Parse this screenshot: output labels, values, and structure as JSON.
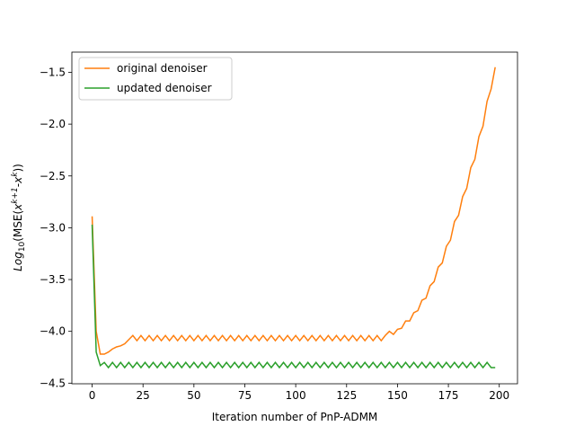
{
  "chart_data": {
    "type": "line",
    "xlabel": "Iteration number of PnP-ADMM",
    "ylabel_parts": [
      "Log",
      "10",
      "(MSE(",
      "x",
      "k+1",
      "-",
      "x",
      "k",
      "))"
    ],
    "x": [
      0,
      2,
      4,
      6,
      8,
      10,
      12,
      14,
      16,
      18,
      20,
      22,
      24,
      26,
      28,
      30,
      32,
      34,
      36,
      38,
      40,
      42,
      44,
      46,
      48,
      50,
      52,
      54,
      56,
      58,
      60,
      62,
      64,
      66,
      68,
      70,
      72,
      74,
      76,
      78,
      80,
      82,
      84,
      86,
      88,
      90,
      92,
      94,
      96,
      98,
      100,
      102,
      104,
      106,
      108,
      110,
      112,
      114,
      116,
      118,
      120,
      122,
      124,
      126,
      128,
      130,
      132,
      134,
      136,
      138,
      140,
      142,
      144,
      146,
      148,
      150,
      152,
      154,
      156,
      158,
      160,
      162,
      164,
      166,
      168,
      170,
      172,
      174,
      176,
      178,
      180,
      182,
      184,
      186,
      188,
      190,
      192,
      194,
      196,
      198
    ],
    "series": [
      {
        "name": "original denoiser",
        "color": "#ff7f0e",
        "values": [
          -2.89,
          -4.0,
          -4.22,
          -4.22,
          -4.2,
          -4.17,
          -4.15,
          -4.14,
          -4.12,
          -4.08,
          -4.04,
          -4.09,
          -4.04,
          -4.09,
          -4.04,
          -4.09,
          -4.04,
          -4.09,
          -4.04,
          -4.09,
          -4.04,
          -4.09,
          -4.04,
          -4.09,
          -4.04,
          -4.09,
          -4.04,
          -4.09,
          -4.04,
          -4.09,
          -4.04,
          -4.09,
          -4.04,
          -4.09,
          -4.04,
          -4.09,
          -4.04,
          -4.09,
          -4.04,
          -4.09,
          -4.04,
          -4.09,
          -4.04,
          -4.09,
          -4.04,
          -4.09,
          -4.04,
          -4.09,
          -4.04,
          -4.09,
          -4.04,
          -4.09,
          -4.04,
          -4.09,
          -4.04,
          -4.09,
          -4.04,
          -4.09,
          -4.04,
          -4.09,
          -4.04,
          -4.09,
          -4.04,
          -4.09,
          -4.04,
          -4.09,
          -4.04,
          -4.09,
          -4.04,
          -4.09,
          -4.04,
          -4.09,
          -4.04,
          -4.0,
          -4.03,
          -3.98,
          -3.97,
          -3.9,
          -3.9,
          -3.82,
          -3.8,
          -3.7,
          -3.68,
          -3.56,
          -3.52,
          -3.38,
          -3.34,
          -3.18,
          -3.12,
          -2.94,
          -2.88,
          -2.7,
          -2.62,
          -2.42,
          -2.34,
          -2.12,
          -2.02,
          -1.78,
          -1.66,
          -1.45
        ]
      },
      {
        "name": "updated denoiser",
        "color": "#2ca02c",
        "values": [
          -2.97,
          -4.2,
          -4.33,
          -4.3,
          -4.35,
          -4.3,
          -4.35,
          -4.3,
          -4.35,
          -4.3,
          -4.35,
          -4.3,
          -4.35,
          -4.3,
          -4.35,
          -4.3,
          -4.35,
          -4.3,
          -4.35,
          -4.3,
          -4.35,
          -4.3,
          -4.35,
          -4.3,
          -4.35,
          -4.3,
          -4.35,
          -4.3,
          -4.35,
          -4.3,
          -4.35,
          -4.3,
          -4.35,
          -4.3,
          -4.35,
          -4.3,
          -4.35,
          -4.3,
          -4.35,
          -4.3,
          -4.35,
          -4.3,
          -4.35,
          -4.3,
          -4.35,
          -4.3,
          -4.35,
          -4.3,
          -4.35,
          -4.3,
          -4.35,
          -4.3,
          -4.35,
          -4.3,
          -4.35,
          -4.3,
          -4.35,
          -4.3,
          -4.35,
          -4.3,
          -4.35,
          -4.3,
          -4.35,
          -4.3,
          -4.35,
          -4.3,
          -4.35,
          -4.3,
          -4.35,
          -4.3,
          -4.35,
          -4.3,
          -4.35,
          -4.3,
          -4.35,
          -4.3,
          -4.35,
          -4.3,
          -4.35,
          -4.3,
          -4.35,
          -4.3,
          -4.35,
          -4.3,
          -4.35,
          -4.3,
          -4.35,
          -4.3,
          -4.35,
          -4.3,
          -4.35,
          -4.3,
          -4.35,
          -4.3,
          -4.35,
          -4.3,
          -4.35,
          -4.3,
          -4.35,
          -4.35
        ]
      }
    ],
    "xlim": [
      -9.95,
      208.95
    ],
    "ylim": [
      -4.506,
      -1.305
    ],
    "xticks": [
      0,
      25,
      50,
      75,
      100,
      125,
      150,
      175,
      200
    ],
    "yticks": [
      {
        "value": -4.5,
        "label": "−4.5"
      },
      {
        "value": -4.0,
        "label": "−4.0"
      },
      {
        "value": -3.5,
        "label": "−3.5"
      },
      {
        "value": -3.0,
        "label": "−3.0"
      },
      {
        "value": -2.5,
        "label": "−2.5"
      },
      {
        "value": -2.0,
        "label": "−2.0"
      },
      {
        "value": -1.5,
        "label": "−1.5"
      }
    ],
    "legend": "upper left"
  }
}
